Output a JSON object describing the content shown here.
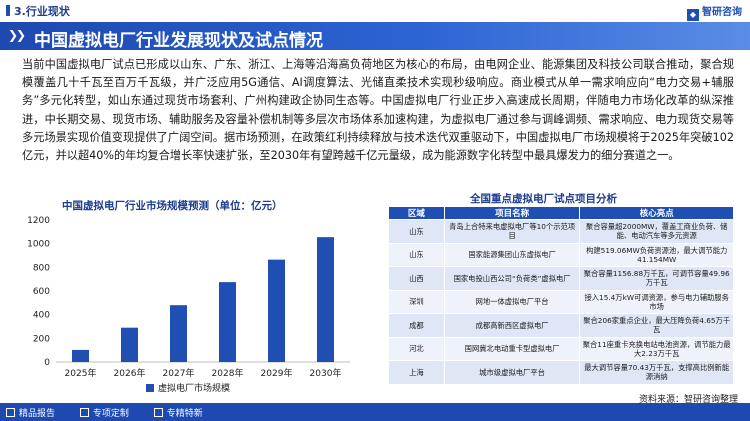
{
  "header": {
    "section_title": "3.行业现状",
    "brand": "智研咨询",
    "banner_title": "中国虚拟电厂行业发展现状及试点情况"
  },
  "paragraph": "当前中国虚拟电厂试点已形成以山东、广东、浙江、上海等沿海高负荷地区为核心的布局，由电网企业、能源集团及科技公司联合推动，聚合规模覆盖几十千瓦至百万千瓦级，并广泛应用5G通信、AI调度算法、光储直柔技术实现秒级响应。商业模式从单一需求响应向“电力交易+辅服务”多元化转型，如山东通过现货市场套利、广州构建政企协同生态等。中国虚拟电厂行业正步入高速成长周期，伴随电力市场化改革的纵深推进，中长期交易、现货市场、辅助服务及容量补偿机制等多层次市场体系加速构建，为虚拟电厂通过参与调峰调频、需求响应、电力现货交易等多元场景实现价值变现提供了广阔空间。据市场预测，在政策红利持续释放与技术迭代双重驱动下，中国虚拟电厂市场规模将于2025年突破102亿元，并以超40%的年均复合增长率快速扩张，至2030年有望跨越千亿元量级，成为能源数字化转型中最具爆发力的细分赛道之一。",
  "chart_title": "中国虚拟电厂行业市场规模预测（单位：亿元）",
  "chart_data": {
    "type": "bar",
    "categories": [
      "2025年",
      "2026年",
      "2027年",
      "2028年",
      "2029年",
      "2030年"
    ],
    "series": [
      {
        "name": "虚拟电厂市场规模",
        "values": [
          102,
          290,
          480,
          675,
          865,
          1055
        ]
      }
    ],
    "yticks": [
      "0",
      "200",
      "400",
      "600",
      "800",
      "1000",
      "1200"
    ],
    "ylim": [
      0,
      1200
    ],
    "grid": false,
    "legend": "bottom",
    "bar_color": "#1f4fb3"
  },
  "table": {
    "title": "全国重点虚拟电厂试点项目分析",
    "headers": [
      "区域",
      "项目名称",
      "核心亮点"
    ],
    "rows": [
      {
        "region": "山东",
        "project": "青岛上合特来电虚拟电厂等10个示范项目",
        "highlight": "聚合容量超2000MW，覆盖工商业负荷、储能、电动汽车等多元资源"
      },
      {
        "region": "山东",
        "project": "国家能源集团山东虚拟电厂",
        "highlight": "构建519.06MW负荷资源池，最大调节能力41.154MW"
      },
      {
        "region": "山西",
        "project": "国家电投山西公司“负荷类”虚拟电厂",
        "highlight": "聚合容量1156.88万千瓦，可调节容量49.96万千瓦"
      },
      {
        "region": "深圳",
        "project": "网地一体虚拟电厂平台",
        "highlight": "接入15.4万kW可调资源，参与电力辅助服务市场"
      },
      {
        "region": "成都",
        "project": "成都高新西区虚拟电厂",
        "highlight": "聚合206家重点企业，最大压降负荷4.65万千瓦"
      },
      {
        "region": "河北",
        "project": "国网冀北电动重卡型虚拟电厂",
        "highlight": "聚合11座重卡充换电站电池资源，调节能力最大2.23万千瓦"
      },
      {
        "region": "上海",
        "project": "城市级虚拟电厂平台",
        "highlight": "最大调节容量70.43万千瓦，支撑高比例新能源消纳"
      }
    ]
  },
  "source": "资料来源：智研咨询整理",
  "footer": {
    "items": [
      "精品报告",
      "专项定制",
      "专精特新"
    ]
  }
}
